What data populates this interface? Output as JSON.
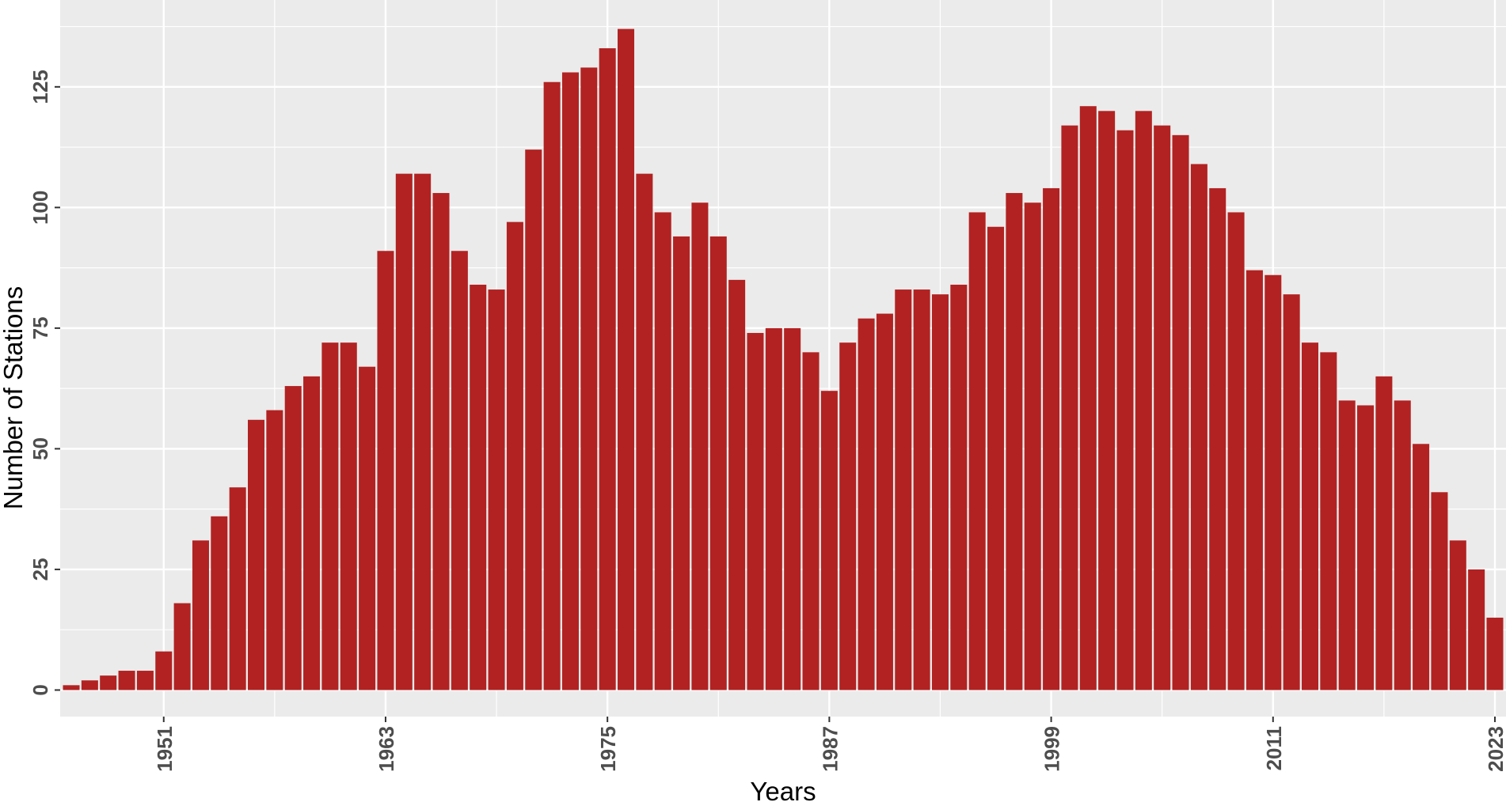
{
  "chart_data": {
    "type": "bar",
    "title": "",
    "xlabel": "Years",
    "ylabel": "Number of Stations",
    "x": [
      1946,
      1947,
      1948,
      1949,
      1950,
      1951,
      1952,
      1953,
      1954,
      1955,
      1956,
      1957,
      1958,
      1959,
      1960,
      1961,
      1962,
      1963,
      1964,
      1965,
      1966,
      1967,
      1968,
      1969,
      1970,
      1971,
      1972,
      1973,
      1974,
      1975,
      1976,
      1977,
      1978,
      1979,
      1980,
      1981,
      1982,
      1983,
      1984,
      1985,
      1986,
      1987,
      1988,
      1989,
      1990,
      1991,
      1992,
      1993,
      1994,
      1995,
      1996,
      1997,
      1998,
      1999,
      2000,
      2001,
      2002,
      2003,
      2004,
      2005,
      2006,
      2007,
      2008,
      2009,
      2010,
      2011,
      2012,
      2013,
      2014,
      2015,
      2016,
      2017,
      2018,
      2019,
      2020,
      2021,
      2022,
      2023
    ],
    "values": [
      1,
      2,
      3,
      4,
      4,
      8,
      18,
      31,
      36,
      42,
      56,
      58,
      63,
      65,
      72,
      72,
      67,
      91,
      107,
      107,
      103,
      91,
      84,
      83,
      97,
      112,
      126,
      128,
      129,
      133,
      137,
      107,
      99,
      94,
      101,
      94,
      85,
      74,
      75,
      75,
      70,
      62,
      72,
      77,
      78,
      83,
      83,
      82,
      84,
      99,
      96,
      103,
      101,
      104,
      117,
      121,
      120,
      116,
      120,
      117,
      115,
      109,
      104,
      99,
      87,
      86,
      82,
      72,
      70,
      60,
      59,
      65,
      60,
      51,
      41,
      31,
      25,
      15
    ],
    "x_ticks": [
      1951,
      1963,
      1975,
      1987,
      1999,
      2011,
      2023
    ],
    "y_ticks": [
      0,
      25,
      50,
      75,
      100,
      125
    ],
    "xlim": [
      1945.4,
      2023.6
    ],
    "ylim": [
      -5.5,
      143
    ],
    "bar_color": "#B22222",
    "panel_color": "#EBEBEB",
    "grid": true,
    "legend": "none"
  }
}
